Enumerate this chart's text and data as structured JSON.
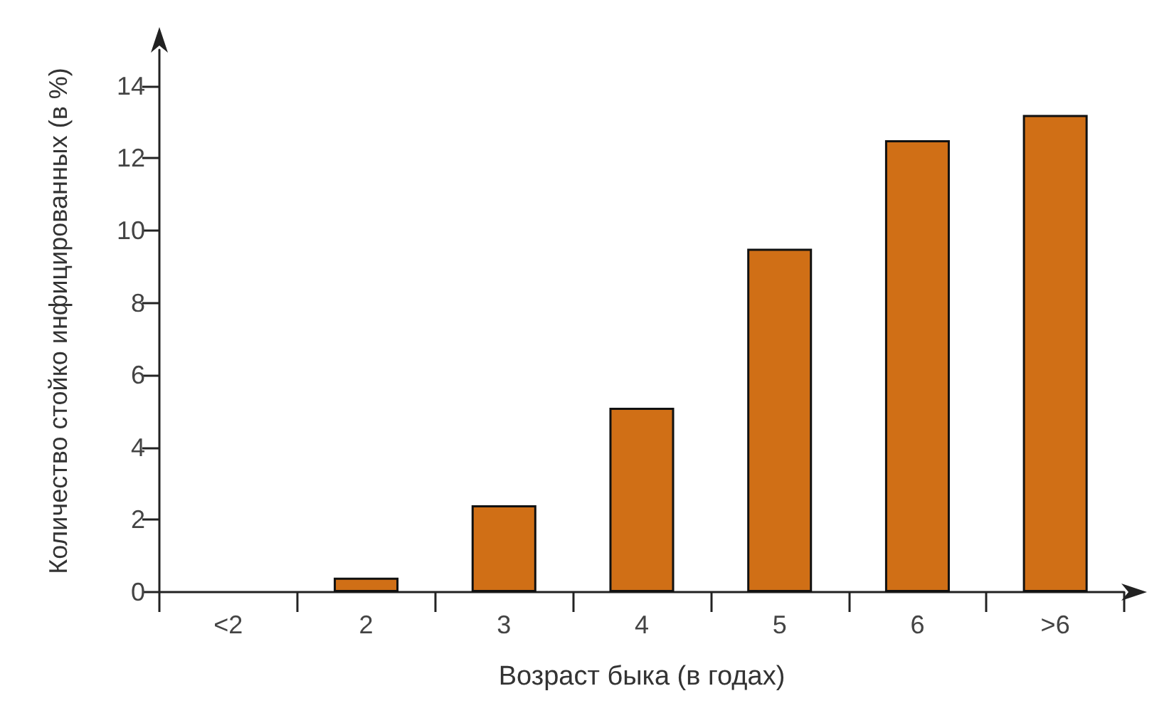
{
  "chart_data": {
    "type": "bar",
    "xlabel": "Возраст быка (в годах)",
    "ylabel": "Количество стойко инфицированных (в %)",
    "categories": [
      "<2",
      "2",
      "3",
      "4",
      "5",
      "6",
      ">6"
    ],
    "values": [
      0,
      0.4,
      2.4,
      5.1,
      9.5,
      12.5,
      13.2
    ],
    "color": "#d06f16",
    "ylim": [
      0,
      15
    ],
    "yticks": [
      0,
      2,
      4,
      6,
      8,
      10,
      12,
      14
    ],
    "grid": false
  }
}
